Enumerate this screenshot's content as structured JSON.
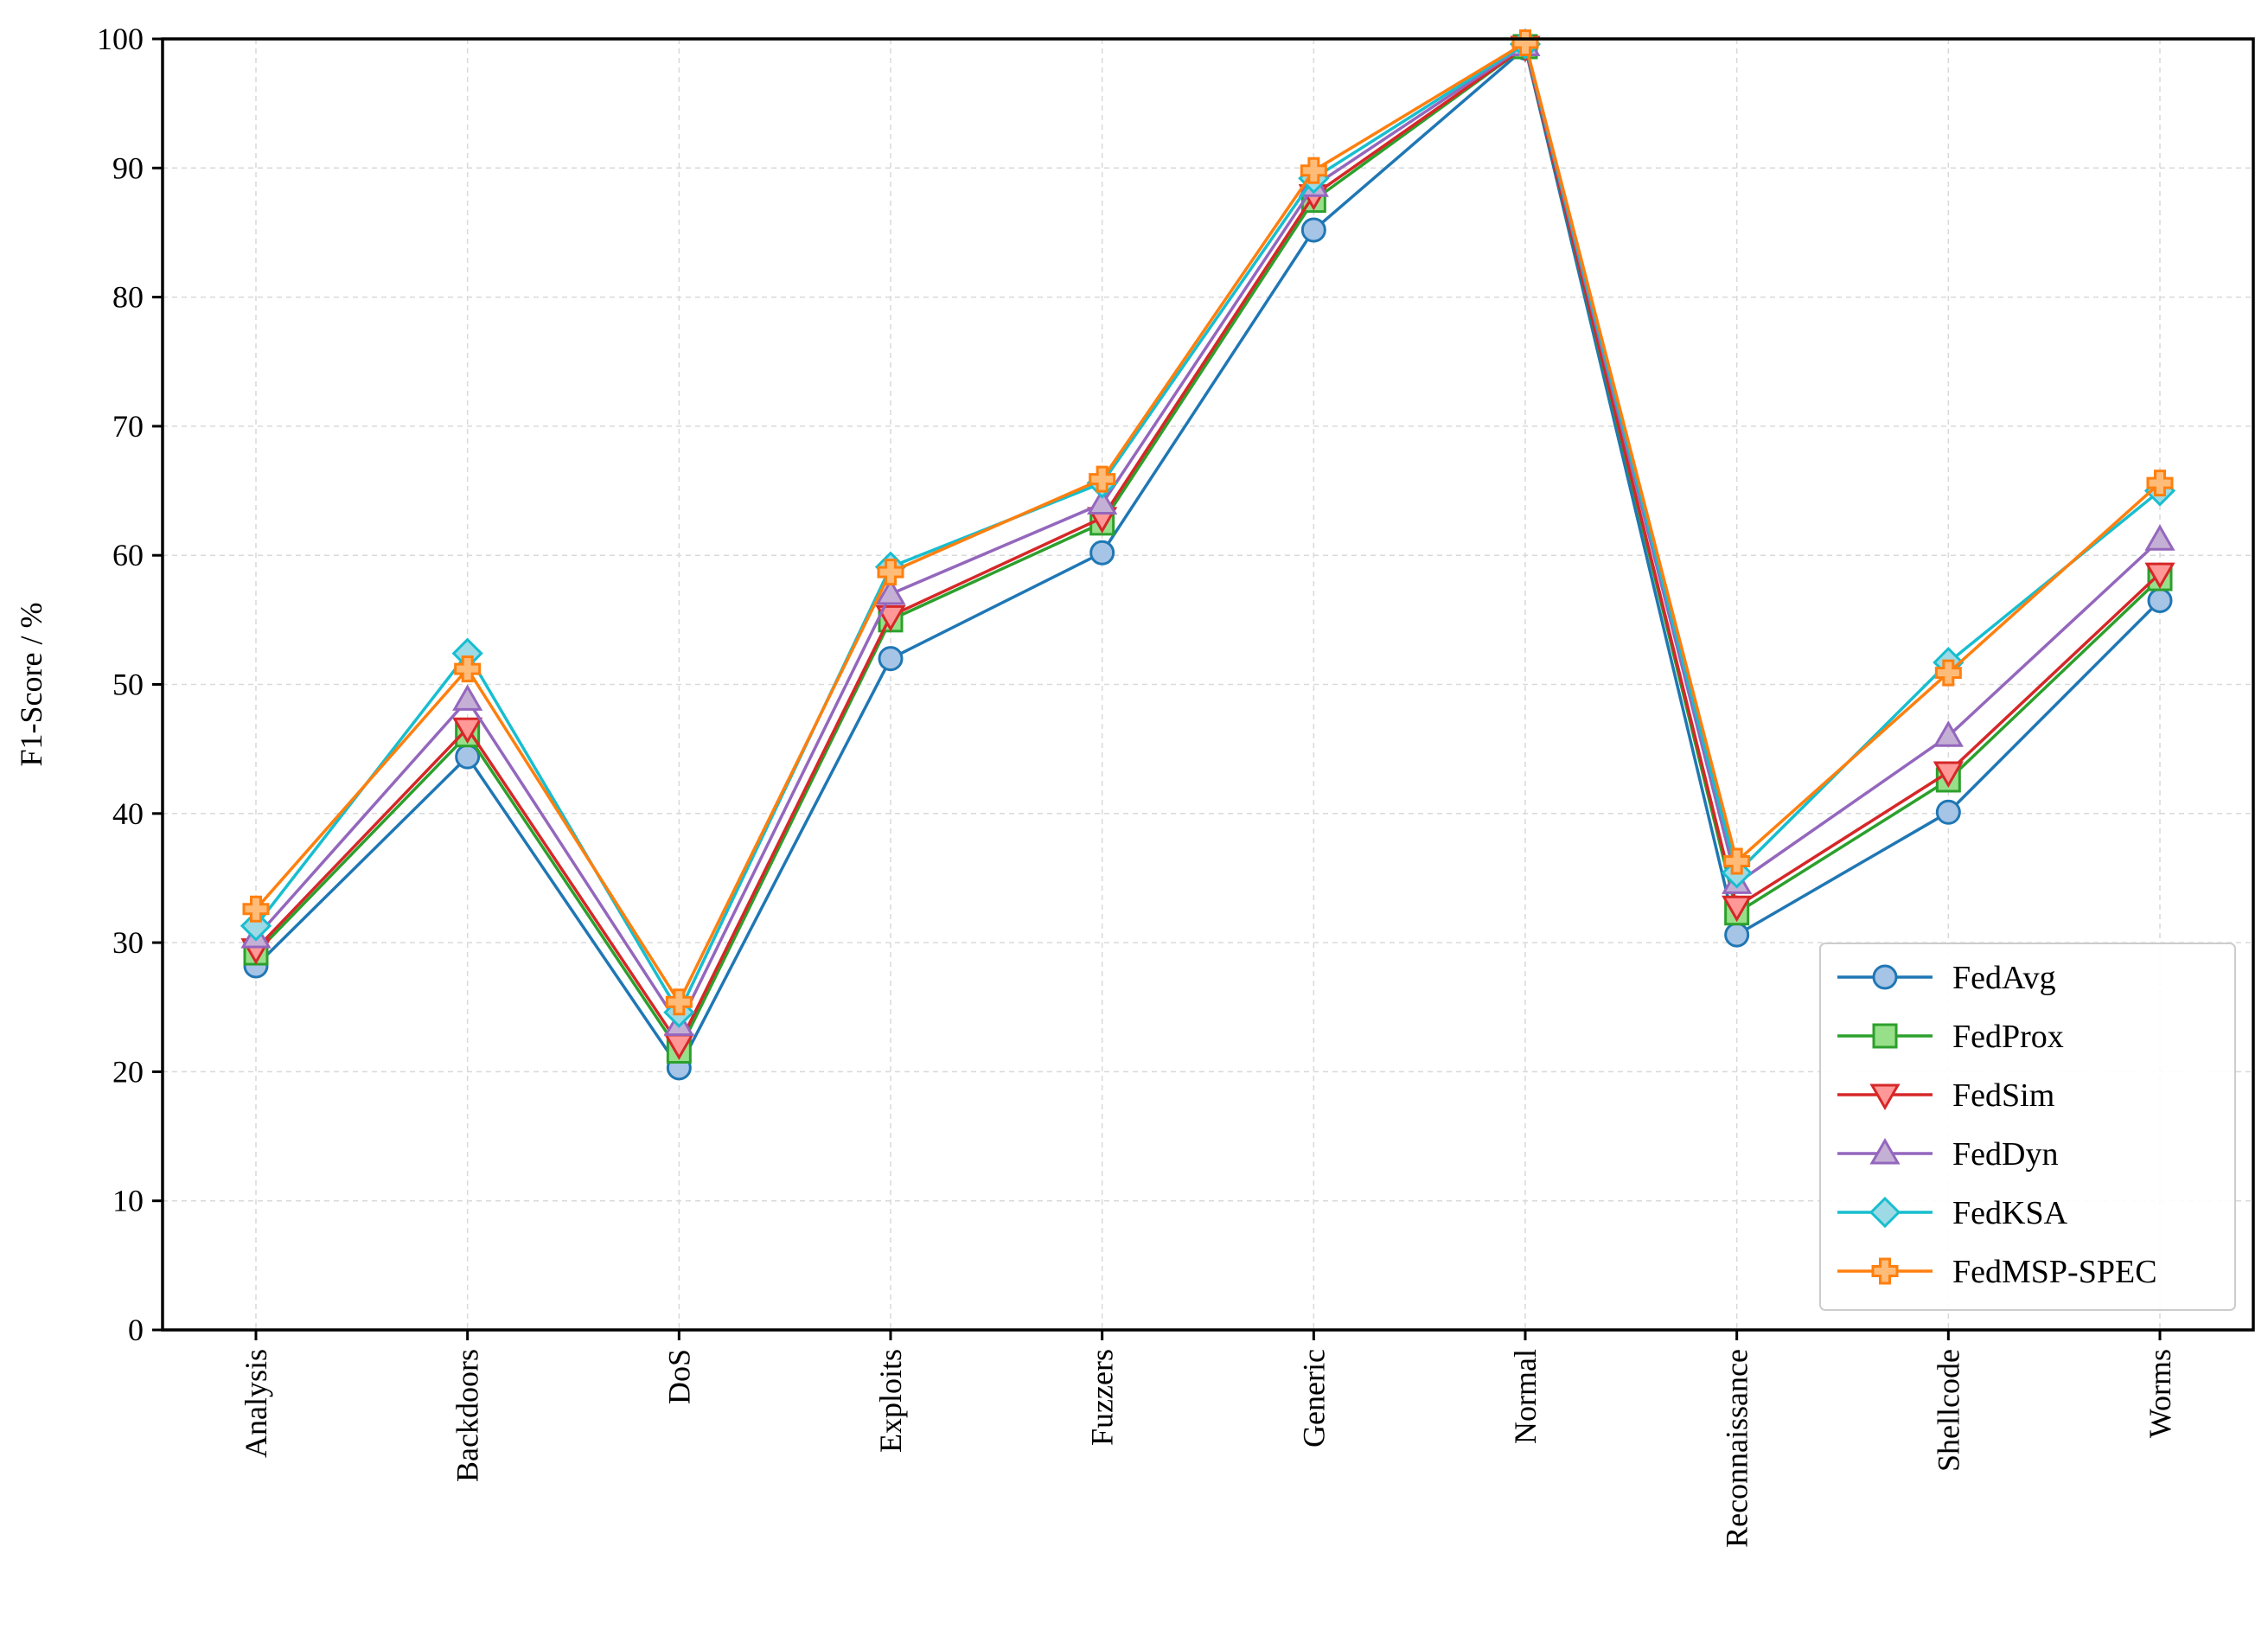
{
  "chart_data": {
    "type": "line",
    "title": "",
    "xlabel": "",
    "ylabel": "F1-Score / %",
    "ylim": [
      0,
      100
    ],
    "yticks": [
      0,
      10,
      20,
      30,
      40,
      50,
      60,
      70,
      80,
      90,
      100
    ],
    "grid": true,
    "legend_position": "bottom-right",
    "categories": [
      "Analysis",
      "Backdoors",
      "DoS",
      "Exploits",
      "Fuzzers",
      "Generic",
      "Normal",
      "Reconnaissance",
      "Shellcode",
      "Worms"
    ],
    "series": [
      {
        "name": "FedAvg",
        "marker": "circle",
        "color": "#1f77b4",
        "fill": "#a6c4e6",
        "values": [
          28.2,
          44.4,
          20.3,
          52.0,
          60.2,
          85.2,
          99.3,
          30.6,
          40.1,
          56.5
        ]
      },
      {
        "name": "FedProx",
        "marker": "square",
        "color": "#2ca02c",
        "fill": "#98df8a",
        "values": [
          29.2,
          46.1,
          21.6,
          55.0,
          62.5,
          87.5,
          99.4,
          32.3,
          42.6,
          58.2
        ]
      },
      {
        "name": "FedSim",
        "marker": "triangle-down",
        "color": "#d62728",
        "fill": "#ff9896",
        "values": [
          29.5,
          46.6,
          22.1,
          55.3,
          62.9,
          87.9,
          99.4,
          32.8,
          43.2,
          58.6
        ]
      },
      {
        "name": "FedDyn",
        "marker": "triangle-up",
        "color": "#9467bd",
        "fill": "#c5b0d5",
        "values": [
          30.4,
          48.8,
          23.6,
          57.0,
          64.0,
          88.6,
          99.5,
          34.6,
          46.0,
          61.2
        ]
      },
      {
        "name": "FedKSA",
        "marker": "diamond",
        "color": "#17becf",
        "fill": "#9edae5",
        "values": [
          31.3,
          52.4,
          24.6,
          59.1,
          65.6,
          89.2,
          99.6,
          35.4,
          51.7,
          65.0
        ]
      },
      {
        "name": "FedMSP-SPEC",
        "marker": "plus",
        "color": "#ff7f0e",
        "fill": "#ffbb78",
        "values": [
          32.6,
          51.2,
          25.4,
          58.7,
          65.9,
          89.8,
          99.7,
          36.3,
          50.9,
          65.6
        ]
      }
    ]
  }
}
